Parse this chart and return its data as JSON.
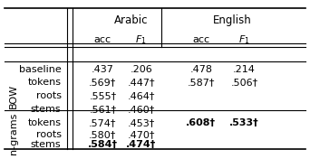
{
  "title": "",
  "col_groups": [
    "Arabic",
    "English"
  ],
  "col_subheaders": [
    "acc",
    "F1",
    "acc",
    "F1"
  ],
  "row_group_labels": [
    "BOW",
    "n-grams"
  ],
  "rows": [
    {
      "group": null,
      "label": "baseline",
      "vals": [
        ".437",
        ".206",
        ".478",
        ".214"
      ],
      "bold": [
        false,
        false,
        false,
        false
      ]
    },
    {
      "group": "BOW",
      "label": "tokens",
      "vals": [
        ".569†",
        ".447†",
        ".587†",
        ".506†"
      ],
      "bold": [
        false,
        false,
        false,
        false
      ]
    },
    {
      "group": "BOW",
      "label": "roots",
      "vals": [
        ".555†",
        ".464†",
        "",
        ""
      ],
      "bold": [
        false,
        false,
        false,
        false
      ]
    },
    {
      "group": "BOW",
      "label": "stems",
      "vals": [
        ".561†",
        ".460†",
        "",
        ""
      ],
      "bold": [
        false,
        false,
        false,
        false
      ]
    },
    {
      "group": "n-grams",
      "label": "tokens",
      "vals": [
        ".574†",
        ".453†",
        ".608†",
        ".533†"
      ],
      "bold": [
        false,
        false,
        true,
        true
      ]
    },
    {
      "group": "n-grams",
      "label": "roots",
      "vals": [
        ".580†",
        ".470†",
        "",
        ""
      ],
      "bold": [
        false,
        false,
        false,
        false
      ]
    },
    {
      "group": "n-grams",
      "label": "stems",
      "vals": [
        ".584†",
        ".474†",
        "",
        ""
      ],
      "bold": [
        true,
        true,
        false,
        false
      ]
    }
  ],
  "bg_color": "#f0f0f0",
  "text_color": "#000000"
}
